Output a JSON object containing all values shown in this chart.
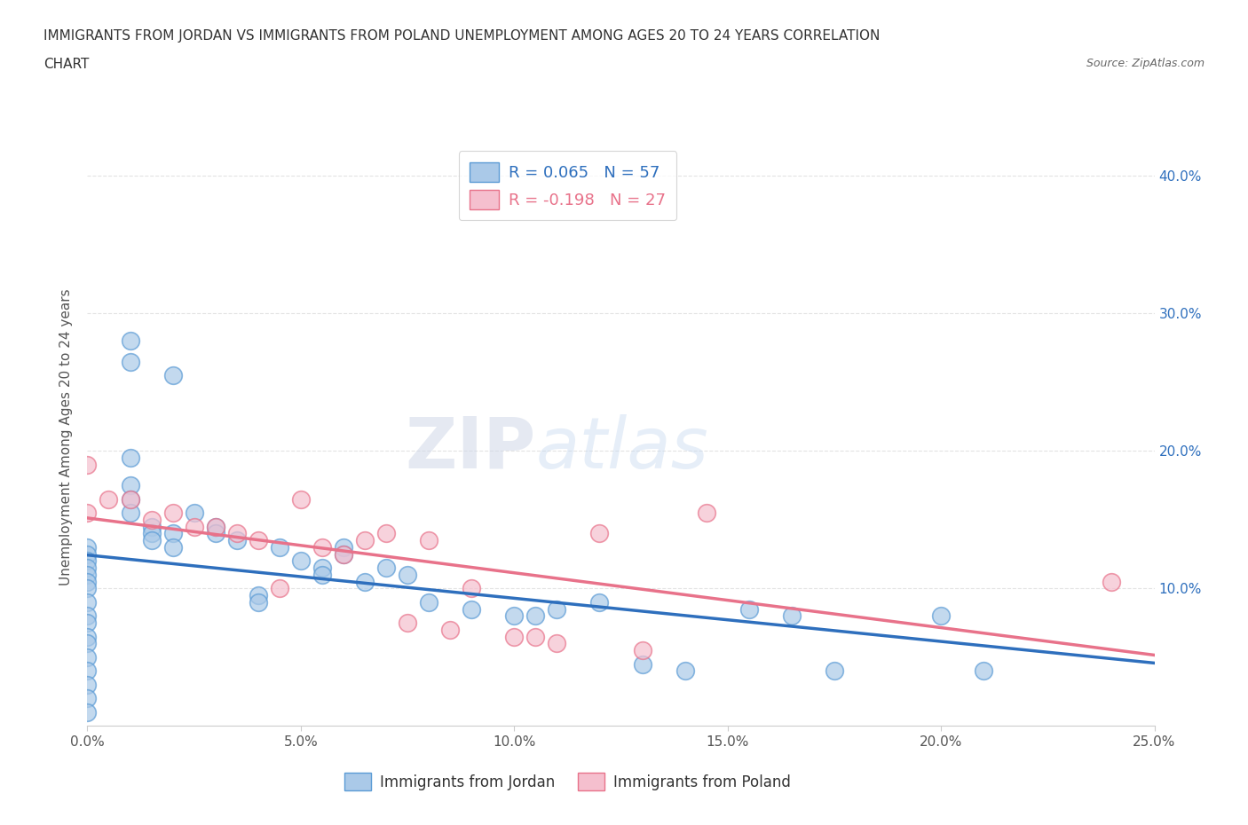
{
  "title_line1": "IMMIGRANTS FROM JORDAN VS IMMIGRANTS FROM POLAND UNEMPLOYMENT AMONG AGES 20 TO 24 YEARS CORRELATION",
  "title_line2": "CHART",
  "source_text": "Source: ZipAtlas.com",
  "ylabel": "Unemployment Among Ages 20 to 24 years",
  "xlim": [
    0.0,
    0.25
  ],
  "ylim": [
    0.0,
    0.42
  ],
  "xtick_labels": [
    "0.0%",
    "5.0%",
    "10.0%",
    "15.0%",
    "20.0%",
    "25.0%"
  ],
  "xtick_vals": [
    0.0,
    0.05,
    0.1,
    0.15,
    0.2,
    0.25
  ],
  "ytick_labels": [
    "10.0%",
    "20.0%",
    "30.0%",
    "40.0%"
  ],
  "ytick_vals": [
    0.1,
    0.2,
    0.3,
    0.4
  ],
  "jordan_color": "#aac9e8",
  "jordan_edge": "#5b9bd5",
  "poland_color": "#f5bfce",
  "poland_edge": "#e8728a",
  "trendline_jordan_color": "#2e6fbd",
  "trendline_poland_color": "#e8728a",
  "jordan_R": 0.065,
  "jordan_N": 57,
  "poland_R": -0.198,
  "poland_N": 27,
  "legend_label_jordan": "Immigrants from Jordan",
  "legend_label_poland": "Immigrants from Poland",
  "watermark_zip": "ZIP",
  "watermark_atlas": "atlas",
  "jordan_x": [
    0.0,
    0.0,
    0.0,
    0.0,
    0.0,
    0.0,
    0.0,
    0.0,
    0.0,
    0.0,
    0.0,
    0.0,
    0.0,
    0.0,
    0.0,
    0.0,
    0.0,
    0.01,
    0.01,
    0.01,
    0.01,
    0.01,
    0.01,
    0.015,
    0.015,
    0.015,
    0.02,
    0.02,
    0.02,
    0.025,
    0.03,
    0.03,
    0.035,
    0.04,
    0.04,
    0.045,
    0.05,
    0.055,
    0.055,
    0.06,
    0.06,
    0.065,
    0.07,
    0.075,
    0.08,
    0.09,
    0.1,
    0.105,
    0.11,
    0.12,
    0.13,
    0.14,
    0.155,
    0.165,
    0.175,
    0.2,
    0.21
  ],
  "jordan_y": [
    0.13,
    0.125,
    0.12,
    0.115,
    0.11,
    0.105,
    0.1,
    0.09,
    0.08,
    0.075,
    0.065,
    0.06,
    0.05,
    0.04,
    0.03,
    0.02,
    0.01,
    0.28,
    0.265,
    0.195,
    0.175,
    0.165,
    0.155,
    0.145,
    0.14,
    0.135,
    0.255,
    0.14,
    0.13,
    0.155,
    0.145,
    0.14,
    0.135,
    0.095,
    0.09,
    0.13,
    0.12,
    0.115,
    0.11,
    0.13,
    0.125,
    0.105,
    0.115,
    0.11,
    0.09,
    0.085,
    0.08,
    0.08,
    0.085,
    0.09,
    0.045,
    0.04,
    0.085,
    0.08,
    0.04,
    0.08,
    0.04
  ],
  "poland_x": [
    0.0,
    0.0,
    0.005,
    0.01,
    0.015,
    0.02,
    0.025,
    0.03,
    0.035,
    0.04,
    0.045,
    0.05,
    0.055,
    0.06,
    0.065,
    0.07,
    0.075,
    0.08,
    0.085,
    0.09,
    0.1,
    0.105,
    0.11,
    0.12,
    0.13,
    0.145,
    0.24
  ],
  "poland_y": [
    0.19,
    0.155,
    0.165,
    0.165,
    0.15,
    0.155,
    0.145,
    0.145,
    0.14,
    0.135,
    0.1,
    0.165,
    0.13,
    0.125,
    0.135,
    0.14,
    0.075,
    0.135,
    0.07,
    0.1,
    0.065,
    0.065,
    0.06,
    0.14,
    0.055,
    0.155,
    0.105
  ],
  "background_color": "#ffffff",
  "grid_color": "#dddddd"
}
